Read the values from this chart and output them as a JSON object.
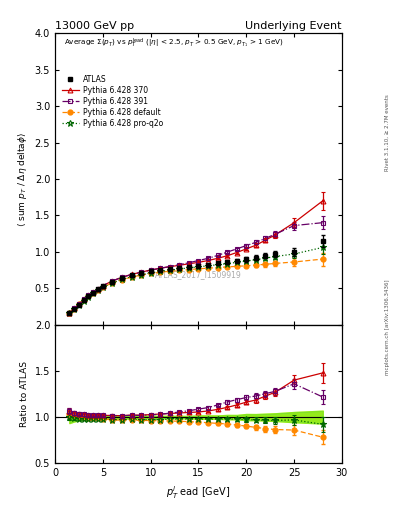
{
  "title_left": "13000 GeV pp",
  "title_right": "Underlying Event",
  "watermark": "ATLAS_2017_I1509919",
  "right_label_top": "Rivet 3.1.10, ≥ 2.7M events",
  "right_label_bottom": "mcplots.cern.ch [arXiv:1306.3436]",
  "xlim": [
    0,
    30
  ],
  "ylim_main": [
    0,
    4
  ],
  "ylim_ratio": [
    0.5,
    2
  ],
  "yticks_main": [
    0.5,
    1.0,
    1.5,
    2.0,
    2.5,
    3.0,
    3.5,
    4.0
  ],
  "yticks_ratio": [
    0.5,
    1.0,
    1.5,
    2.0
  ],
  "atlas_x": [
    1.5,
    2.0,
    2.5,
    3.0,
    3.5,
    4.0,
    4.5,
    5.0,
    6.0,
    7.0,
    8.0,
    9.0,
    10.0,
    11.0,
    12.0,
    13.0,
    14.0,
    15.0,
    16.0,
    17.0,
    18.0,
    19.0,
    20.0,
    21.0,
    22.0,
    23.0,
    25.0,
    28.0
  ],
  "atlas_y": [
    0.155,
    0.215,
    0.275,
    0.335,
    0.39,
    0.44,
    0.485,
    0.525,
    0.59,
    0.64,
    0.675,
    0.705,
    0.73,
    0.75,
    0.765,
    0.78,
    0.795,
    0.81,
    0.825,
    0.84,
    0.855,
    0.875,
    0.895,
    0.92,
    0.945,
    0.97,
    1.0,
    1.15
  ],
  "atlas_yerr": [
    0.01,
    0.01,
    0.01,
    0.01,
    0.01,
    0.01,
    0.01,
    0.01,
    0.01,
    0.01,
    0.01,
    0.01,
    0.01,
    0.01,
    0.01,
    0.01,
    0.01,
    0.015,
    0.015,
    0.015,
    0.02,
    0.02,
    0.03,
    0.03,
    0.035,
    0.04,
    0.055,
    0.08
  ],
  "p370_x": [
    1.5,
    2.0,
    2.5,
    3.0,
    3.5,
    4.0,
    4.5,
    5.0,
    6.0,
    7.0,
    8.0,
    9.0,
    10.0,
    11.0,
    12.0,
    13.0,
    14.0,
    15.0,
    16.0,
    17.0,
    18.0,
    19.0,
    20.0,
    21.0,
    22.0,
    23.0,
    25.0,
    28.0
  ],
  "p370_y": [
    0.165,
    0.225,
    0.285,
    0.345,
    0.4,
    0.45,
    0.495,
    0.535,
    0.6,
    0.65,
    0.69,
    0.72,
    0.75,
    0.775,
    0.795,
    0.815,
    0.835,
    0.855,
    0.88,
    0.91,
    0.945,
    0.99,
    1.04,
    1.09,
    1.16,
    1.23,
    1.4,
    1.7
  ],
  "p370_yerr": [
    0.005,
    0.005,
    0.005,
    0.005,
    0.005,
    0.005,
    0.005,
    0.005,
    0.008,
    0.008,
    0.008,
    0.008,
    0.01,
    0.01,
    0.01,
    0.01,
    0.01,
    0.01,
    0.012,
    0.012,
    0.015,
    0.018,
    0.022,
    0.025,
    0.03,
    0.04,
    0.06,
    0.12
  ],
  "p391_x": [
    1.5,
    2.0,
    2.5,
    3.0,
    3.5,
    4.0,
    4.5,
    5.0,
    6.0,
    7.0,
    8.0,
    9.0,
    10.0,
    11.0,
    12.0,
    13.0,
    14.0,
    15.0,
    16.0,
    17.0,
    18.0,
    19.0,
    20.0,
    21.0,
    22.0,
    23.0,
    25.0,
    28.0
  ],
  "p391_y": [
    0.165,
    0.225,
    0.285,
    0.345,
    0.4,
    0.45,
    0.495,
    0.535,
    0.6,
    0.65,
    0.688,
    0.718,
    0.748,
    0.773,
    0.798,
    0.823,
    0.85,
    0.88,
    0.91,
    0.95,
    0.995,
    1.04,
    1.085,
    1.13,
    1.185,
    1.24,
    1.36,
    1.4
  ],
  "p391_yerr": [
    0.005,
    0.005,
    0.005,
    0.005,
    0.005,
    0.005,
    0.005,
    0.005,
    0.008,
    0.008,
    0.008,
    0.008,
    0.01,
    0.01,
    0.01,
    0.01,
    0.01,
    0.01,
    0.012,
    0.012,
    0.015,
    0.018,
    0.022,
    0.025,
    0.03,
    0.04,
    0.055,
    0.09
  ],
  "pdef_x": [
    1.5,
    2.0,
    2.5,
    3.0,
    3.5,
    4.0,
    4.5,
    5.0,
    6.0,
    7.0,
    8.0,
    9.0,
    10.0,
    11.0,
    12.0,
    13.0,
    14.0,
    15.0,
    16.0,
    17.0,
    18.0,
    19.0,
    20.0,
    21.0,
    22.0,
    23.0,
    25.0,
    28.0
  ],
  "pdef_y": [
    0.16,
    0.22,
    0.278,
    0.335,
    0.388,
    0.435,
    0.478,
    0.515,
    0.572,
    0.618,
    0.652,
    0.68,
    0.703,
    0.72,
    0.733,
    0.745,
    0.756,
    0.766,
    0.775,
    0.783,
    0.792,
    0.8,
    0.808,
    0.818,
    0.828,
    0.84,
    0.86,
    0.9
  ],
  "pdef_yerr": [
    0.005,
    0.005,
    0.005,
    0.005,
    0.005,
    0.005,
    0.005,
    0.005,
    0.008,
    0.008,
    0.008,
    0.008,
    0.01,
    0.01,
    0.01,
    0.01,
    0.01,
    0.01,
    0.012,
    0.012,
    0.015,
    0.018,
    0.022,
    0.025,
    0.03,
    0.04,
    0.055,
    0.09
  ],
  "pproq2o_x": [
    1.5,
    2.0,
    2.5,
    3.0,
    3.5,
    4.0,
    4.5,
    5.0,
    6.0,
    7.0,
    8.0,
    9.0,
    10.0,
    11.0,
    12.0,
    13.0,
    14.0,
    15.0,
    16.0,
    17.0,
    18.0,
    19.0,
    20.0,
    21.0,
    22.0,
    23.0,
    25.0,
    28.0
  ],
  "pproq2o_y": [
    0.155,
    0.213,
    0.27,
    0.328,
    0.382,
    0.43,
    0.473,
    0.512,
    0.574,
    0.622,
    0.658,
    0.686,
    0.71,
    0.73,
    0.748,
    0.764,
    0.779,
    0.793,
    0.808,
    0.822,
    0.838,
    0.855,
    0.872,
    0.892,
    0.912,
    0.935,
    0.97,
    1.06
  ],
  "pproq2o_yerr": [
    0.005,
    0.005,
    0.005,
    0.005,
    0.005,
    0.005,
    0.005,
    0.005,
    0.008,
    0.008,
    0.008,
    0.008,
    0.01,
    0.01,
    0.01,
    0.01,
    0.01,
    0.01,
    0.012,
    0.012,
    0.015,
    0.018,
    0.022,
    0.025,
    0.03,
    0.04,
    0.055,
    0.09
  ],
  "color_atlas": "#000000",
  "color_p370": "#cc0000",
  "color_p391": "#660066",
  "color_pdef": "#ff8800",
  "color_pproq2o": "#006600"
}
